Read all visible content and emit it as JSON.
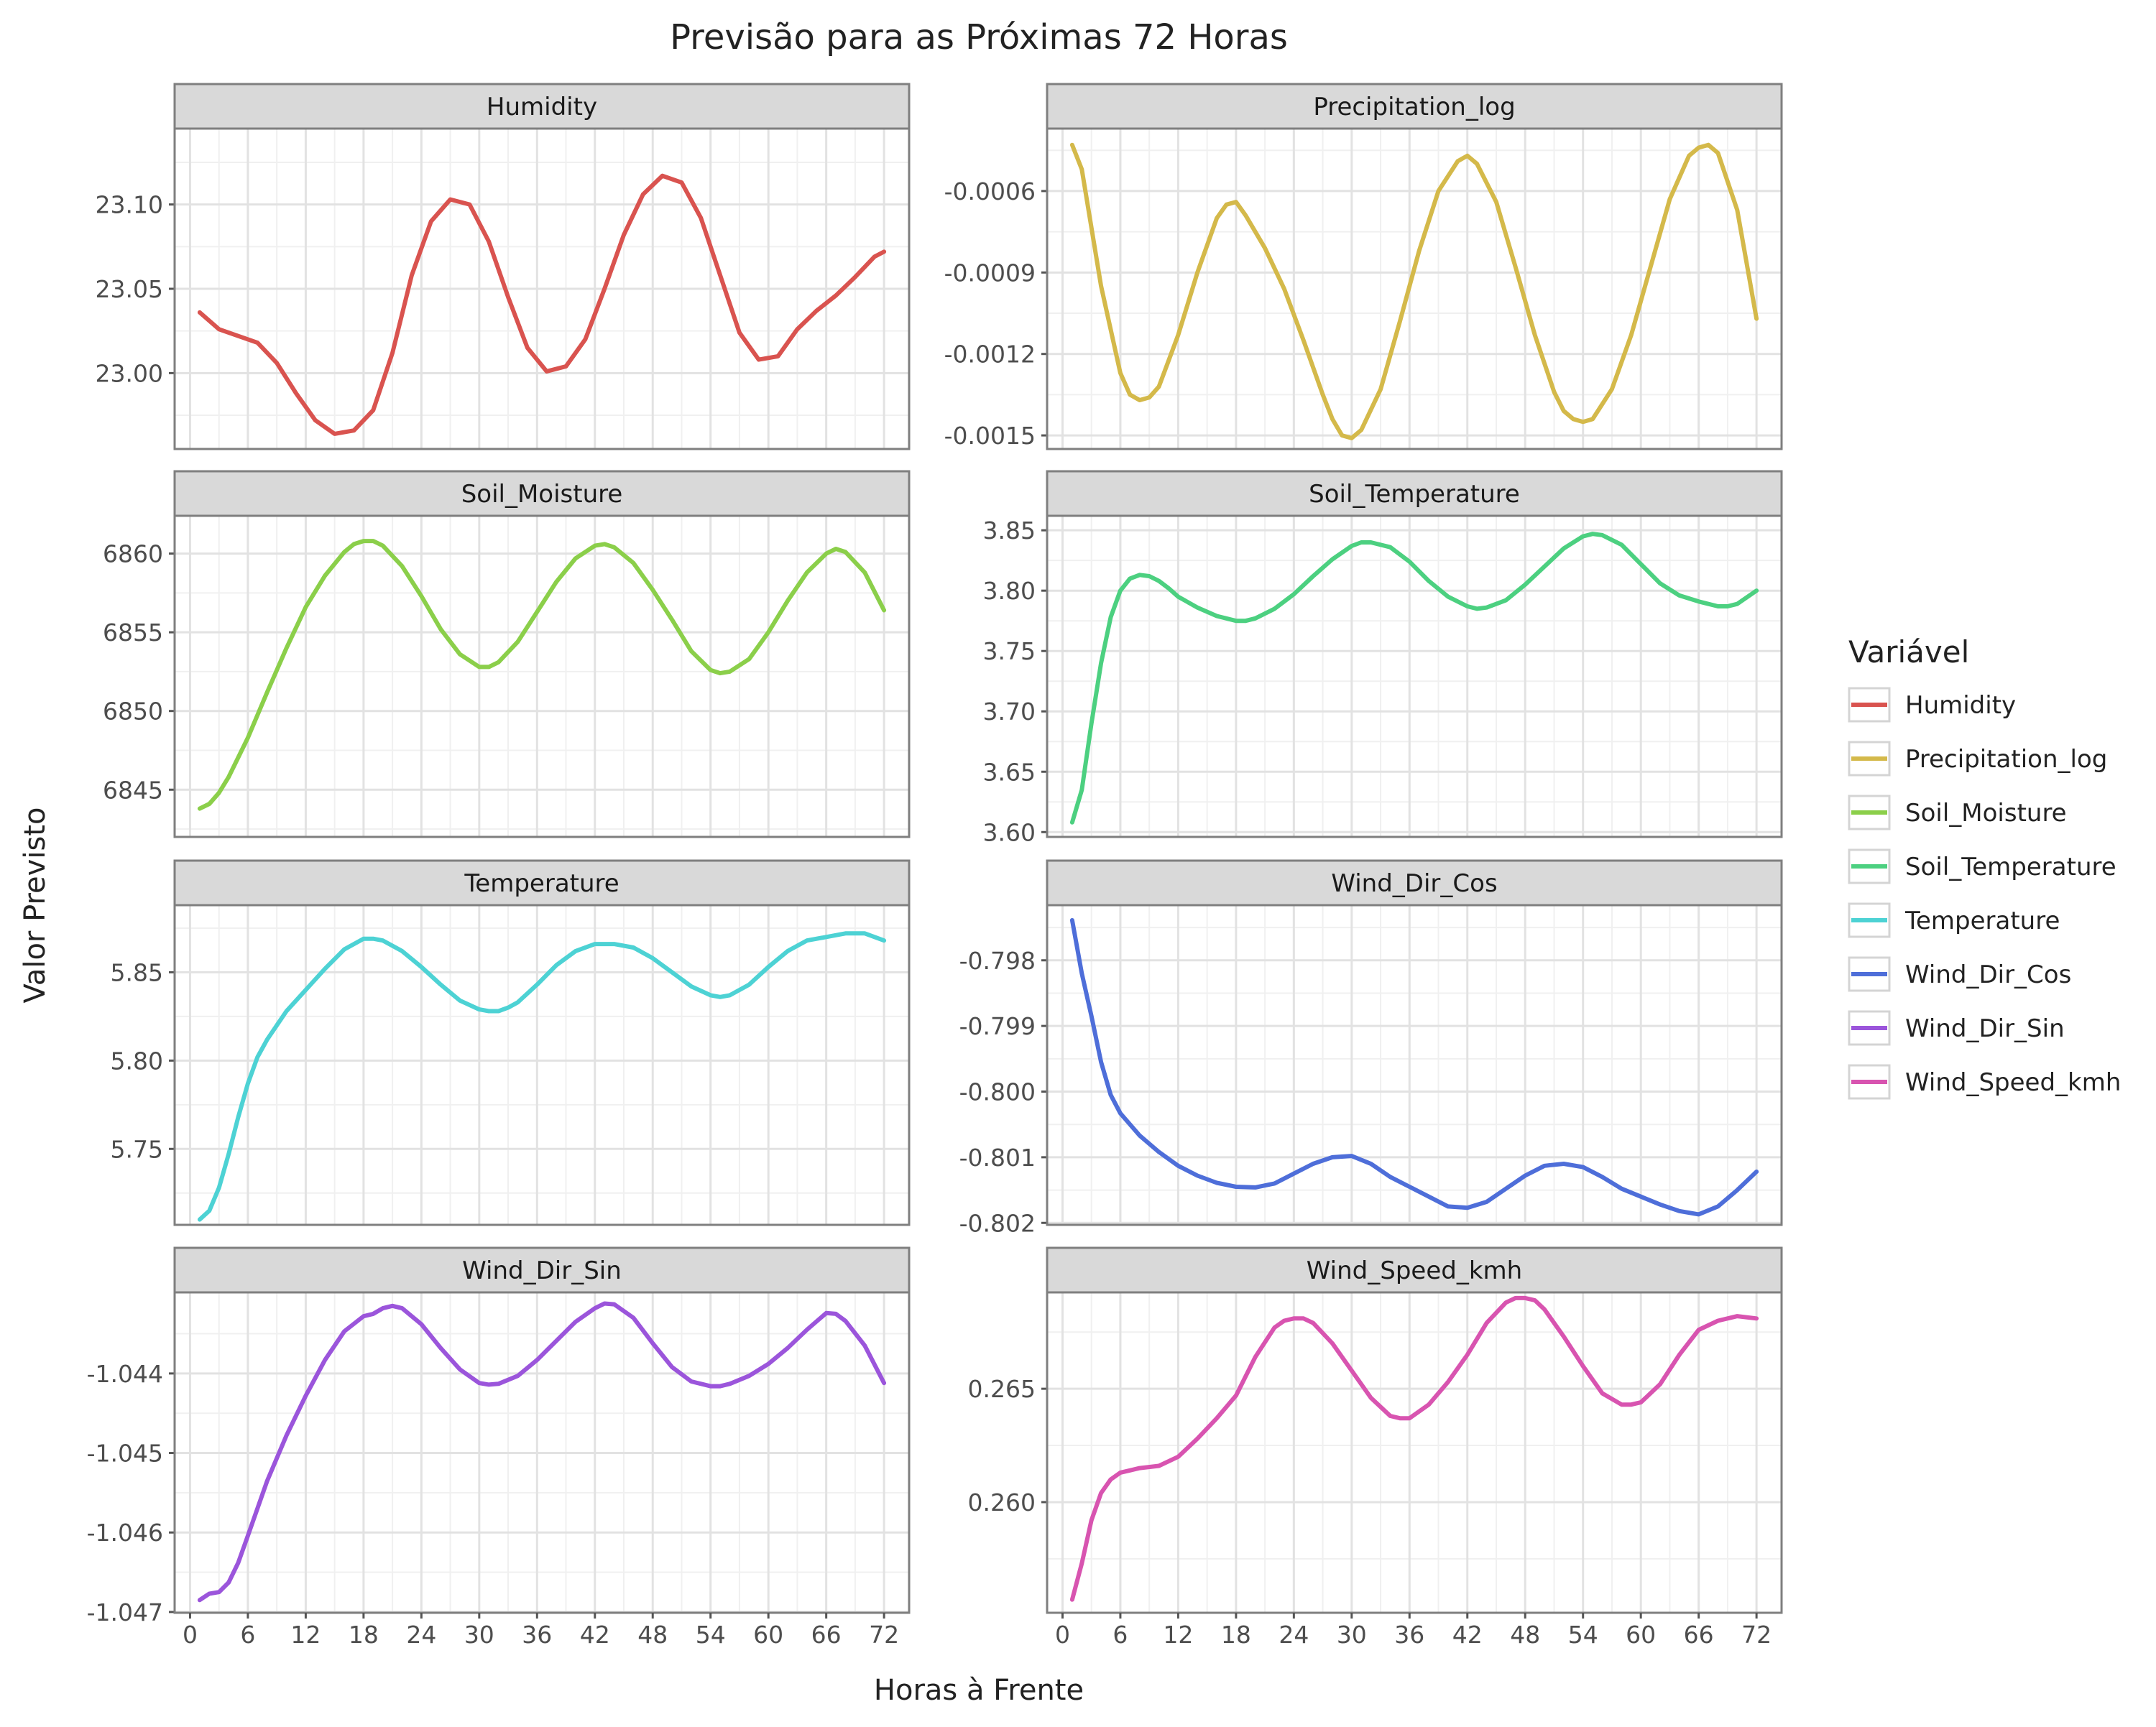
{
  "chart_data": {
    "type": "line",
    "title": "Previsão para as Próximas 72 Horas",
    "xlabel": "Horas à Frente",
    "ylabel": "Valor Previsto",
    "legend": {
      "title": "Variável",
      "position": "right",
      "entries": [
        "Humidity",
        "Precipitation_log",
        "Soil_Moisture",
        "Soil_Temperature",
        "Temperature",
        "Wind_Dir_Cos",
        "Wind_Dir_Sin",
        "Wind_Speed_kmh"
      ]
    },
    "grid": true,
    "x": {
      "ticks": [
        0,
        6,
        12,
        18,
        24,
        30,
        36,
        42,
        48,
        54,
        60,
        66,
        72
      ],
      "tick_labels": [
        "0",
        "6",
        "12",
        "18",
        "24",
        "30",
        "36",
        "42",
        "48",
        "54",
        "60",
        "66",
        "72"
      ],
      "lim": [
        -1.6,
        74.6
      ]
    },
    "facets": [
      {
        "name": "Humidity",
        "color": "#D9534F",
        "ylim": [
          22.955,
          23.145
        ],
        "yticks": [
          23.0,
          23.05,
          23.1
        ],
        "ytick_labels": [
          "23.00",
          "23.05",
          "23.10"
        ],
        "x": [
          1,
          3,
          5,
          7,
          9,
          11,
          13,
          15,
          17,
          19,
          21,
          23,
          25,
          27,
          29,
          31,
          33,
          35,
          37,
          39,
          41,
          43,
          45,
          47,
          49,
          51,
          53,
          55,
          57,
          59,
          61,
          63,
          65,
          67,
          69,
          71,
          72
        ],
        "values": [
          23.036,
          23.026,
          23.022,
          23.018,
          23.006,
          22.988,
          22.972,
          22.964,
          22.966,
          22.978,
          23.012,
          23.058,
          23.09,
          23.103,
          23.1,
          23.078,
          23.045,
          23.015,
          23.001,
          23.004,
          23.02,
          23.05,
          23.082,
          23.106,
          23.117,
          23.113,
          23.092,
          23.058,
          23.024,
          23.008,
          23.01,
          23.026,
          23.037,
          23.046,
          23.057,
          23.069,
          23.072
        ]
      },
      {
        "name": "Precipitation_log",
        "color": "#D4B94A",
        "ylim": [
          -0.00155,
          -0.00037
        ],
        "yticks": [
          -0.0015,
          -0.0012,
          -0.0009,
          -0.0006
        ],
        "ytick_labels": [
          "-0.0015",
          "-0.0012",
          "-0.0009",
          "-0.0006"
        ],
        "x": [
          1,
          2,
          4,
          6,
          7,
          8,
          9,
          10,
          12,
          14,
          16,
          17,
          18,
          19,
          21,
          23,
          25,
          27,
          28,
          29,
          30,
          31,
          33,
          35,
          37,
          39,
          41,
          42,
          43,
          45,
          47,
          49,
          51,
          52,
          53,
          54,
          55,
          57,
          59,
          61,
          63,
          65,
          66,
          67,
          68,
          70,
          72
        ],
        "values": [
          -0.00043,
          -0.00052,
          -0.00095,
          -0.00127,
          -0.00135,
          -0.00137,
          -0.00136,
          -0.00132,
          -0.00113,
          -0.0009,
          -0.0007,
          -0.00065,
          -0.00064,
          -0.00069,
          -0.00081,
          -0.00096,
          -0.00115,
          -0.00135,
          -0.00144,
          -0.0015,
          -0.00151,
          -0.00148,
          -0.00133,
          -0.00108,
          -0.00082,
          -0.0006,
          -0.00049,
          -0.00047,
          -0.0005,
          -0.00064,
          -0.00088,
          -0.00113,
          -0.00134,
          -0.00141,
          -0.00144,
          -0.00145,
          -0.00144,
          -0.00133,
          -0.00113,
          -0.00088,
          -0.00063,
          -0.00047,
          -0.00044,
          -0.00043,
          -0.00046,
          -0.00067,
          -0.00107
        ]
      },
      {
        "name": "Soil_Moisture",
        "color": "#8BCF4A",
        "ylim": [
          6842.0,
          6862.4
        ],
        "yticks": [
          6845,
          6850,
          6855,
          6860
        ],
        "ytick_labels": [
          "6845",
          "6850",
          "6855",
          "6860"
        ],
        "x": [
          1,
          2,
          3,
          4,
          6,
          8,
          10,
          12,
          14,
          16,
          17,
          18,
          19,
          20,
          22,
          24,
          26,
          28,
          30,
          31,
          32,
          34,
          36,
          38,
          40,
          42,
          43,
          44,
          46,
          48,
          50,
          52,
          54,
          55,
          56,
          58,
          60,
          62,
          64,
          66,
          67,
          68,
          70,
          72
        ],
        "values": [
          6843.8,
          6844.1,
          6844.8,
          6845.8,
          6848.3,
          6851.2,
          6854.0,
          6856.6,
          6858.6,
          6860.1,
          6860.6,
          6860.8,
          6860.8,
          6860.5,
          6859.2,
          6857.3,
          6855.2,
          6853.6,
          6852.8,
          6852.8,
          6853.1,
          6854.4,
          6856.3,
          6858.2,
          6859.7,
          6860.5,
          6860.6,
          6860.4,
          6859.4,
          6857.7,
          6855.8,
          6853.8,
          6852.6,
          6852.4,
          6852.5,
          6853.3,
          6855.0,
          6857.0,
          6858.8,
          6860.0,
          6860.3,
          6860.1,
          6858.8,
          6856.4
        ]
      },
      {
        "name": "Soil_Temperature",
        "color": "#4CD080",
        "ylim": [
          3.596,
          3.862
        ],
        "yticks": [
          3.6,
          3.65,
          3.7,
          3.75,
          3.8,
          3.85
        ],
        "ytick_labels": [
          "3.60",
          "3.65",
          "3.70",
          "3.75",
          "3.80",
          "3.85"
        ],
        "x": [
          1,
          2,
          3,
          4,
          5,
          6,
          7,
          8,
          9,
          10,
          11,
          12,
          14,
          16,
          18,
          19,
          20,
          22,
          24,
          26,
          28,
          30,
          31,
          32,
          34,
          36,
          38,
          40,
          42,
          43,
          44,
          46,
          48,
          50,
          52,
          54,
          55,
          56,
          58,
          60,
          62,
          64,
          66,
          68,
          69,
          70,
          72
        ],
        "values": [
          3.608,
          3.635,
          3.69,
          3.74,
          3.778,
          3.8,
          3.81,
          3.813,
          3.812,
          3.808,
          3.802,
          3.795,
          3.786,
          3.779,
          3.775,
          3.775,
          3.777,
          3.785,
          3.797,
          3.812,
          3.826,
          3.837,
          3.84,
          3.84,
          3.836,
          3.824,
          3.808,
          3.795,
          3.787,
          3.785,
          3.786,
          3.792,
          3.805,
          3.82,
          3.835,
          3.845,
          3.847,
          3.846,
          3.838,
          3.822,
          3.806,
          3.796,
          3.791,
          3.787,
          3.787,
          3.789,
          3.8
        ]
      },
      {
        "name": "Temperature",
        "color": "#4DD2D4",
        "ylim": [
          5.707,
          5.888
        ],
        "yticks": [
          5.75,
          5.8,
          5.85
        ],
        "ytick_labels": [
          "5.75",
          "5.80",
          "5.85"
        ],
        "x": [
          1,
          2,
          3,
          4,
          5,
          6,
          7,
          8,
          10,
          12,
          14,
          16,
          17,
          18,
          19,
          20,
          22,
          24,
          26,
          28,
          30,
          31,
          32,
          33,
          34,
          36,
          38,
          40,
          42,
          43,
          44,
          46,
          48,
          50,
          52,
          54,
          55,
          56,
          58,
          60,
          62,
          64,
          66,
          68,
          70,
          72
        ],
        "values": [
          5.71,
          5.715,
          5.728,
          5.747,
          5.768,
          5.787,
          5.802,
          5.812,
          5.828,
          5.84,
          5.852,
          5.863,
          5.866,
          5.869,
          5.869,
          5.868,
          5.862,
          5.853,
          5.843,
          5.834,
          5.829,
          5.828,
          5.828,
          5.83,
          5.833,
          5.843,
          5.854,
          5.862,
          5.866,
          5.866,
          5.866,
          5.864,
          5.858,
          5.85,
          5.842,
          5.837,
          5.836,
          5.837,
          5.843,
          5.853,
          5.862,
          5.868,
          5.87,
          5.872,
          5.872,
          5.868
        ]
      },
      {
        "name": "Wind_Dir_Cos",
        "color": "#4E6ED9",
        "ylim": [
          -0.80203,
          -0.79716
        ],
        "yticks": [
          -0.802,
          -0.801,
          -0.8,
          -0.799,
          -0.798
        ],
        "ytick_labels": [
          "-0.802",
          "-0.801",
          "-0.800",
          "-0.799",
          "-0.798"
        ],
        "x": [
          1,
          2,
          3,
          4,
          5,
          6,
          8,
          10,
          12,
          14,
          16,
          18,
          20,
          22,
          24,
          26,
          28,
          30,
          32,
          34,
          36,
          38,
          40,
          42,
          44,
          46,
          48,
          50,
          52,
          54,
          56,
          58,
          60,
          62,
          64,
          66,
          68,
          70,
          72
        ],
        "values": [
          -0.79739,
          -0.7982,
          -0.79885,
          -0.79955,
          -0.80005,
          -0.80033,
          -0.80067,
          -0.80092,
          -0.80113,
          -0.80128,
          -0.80139,
          -0.80145,
          -0.80146,
          -0.8014,
          -0.80125,
          -0.8011,
          -0.801,
          -0.80098,
          -0.8011,
          -0.8013,
          -0.80145,
          -0.8016,
          -0.80175,
          -0.80177,
          -0.80168,
          -0.80148,
          -0.80128,
          -0.80113,
          -0.8011,
          -0.80115,
          -0.8013,
          -0.80148,
          -0.8016,
          -0.80172,
          -0.80182,
          -0.80187,
          -0.80175,
          -0.8015,
          -0.80122
        ]
      },
      {
        "name": "Wind_Dir_Sin",
        "color": "#9B55DB",
        "ylim": [
          -1.04701,
          -1.04298
        ],
        "yticks": [
          -1.047,
          -1.046,
          -1.045,
          -1.044
        ],
        "ytick_labels": [
          "-1.047",
          "-1.046",
          "-1.045",
          "-1.044"
        ],
        "x": [
          1,
          2,
          3,
          4,
          5,
          6,
          8,
          10,
          12,
          14,
          16,
          18,
          19,
          20,
          21,
          22,
          24,
          26,
          28,
          30,
          31,
          32,
          34,
          36,
          38,
          40,
          42,
          43,
          44,
          46,
          48,
          50,
          52,
          54,
          55,
          56,
          58,
          60,
          62,
          64,
          66,
          67,
          68,
          70,
          72
        ],
        "values": [
          -1.04685,
          -1.04677,
          -1.04675,
          -1.04663,
          -1.04638,
          -1.04604,
          -1.04535,
          -1.04478,
          -1.04428,
          -1.04383,
          -1.04347,
          -1.04328,
          -1.04325,
          -1.04318,
          -1.04315,
          -1.04318,
          -1.04338,
          -1.04368,
          -1.04395,
          -1.04412,
          -1.04414,
          -1.04413,
          -1.04403,
          -1.04383,
          -1.04359,
          -1.04335,
          -1.04318,
          -1.04312,
          -1.04313,
          -1.0433,
          -1.04362,
          -1.04392,
          -1.0441,
          -1.04416,
          -1.04416,
          -1.04413,
          -1.04403,
          -1.04388,
          -1.04368,
          -1.04345,
          -1.04324,
          -1.04325,
          -1.04334,
          -1.04365,
          -1.04412
        ]
      },
      {
        "name": "Wind_Speed_kmh",
        "color": "#D854B0",
        "ylim": [
          0.25512,
          0.26925
        ],
        "yticks": [
          0.26,
          0.265
        ],
        "ytick_labels": [
          "0.260",
          "0.265"
        ],
        "x": [
          1,
          2,
          3,
          4,
          5,
          6,
          7,
          8,
          10,
          12,
          14,
          16,
          18,
          20,
          22,
          23,
          24,
          25,
          26,
          28,
          30,
          32,
          34,
          35,
          36,
          38,
          40,
          42,
          44,
          46,
          47,
          48,
          49,
          50,
          52,
          54,
          56,
          58,
          59,
          60,
          62,
          64,
          66,
          68,
          70,
          72
        ],
        "values": [
          0.2557,
          0.2573,
          0.2592,
          0.2604,
          0.261,
          0.2613,
          0.2614,
          0.2615,
          0.2616,
          0.262,
          0.2628,
          0.2637,
          0.2647,
          0.2664,
          0.2677,
          0.268,
          0.2681,
          0.2681,
          0.2679,
          0.267,
          0.2658,
          0.2646,
          0.2638,
          0.2637,
          0.2637,
          0.2643,
          0.2653,
          0.2665,
          0.2679,
          0.2688,
          0.269,
          0.269,
          0.2689,
          0.2685,
          0.2673,
          0.266,
          0.2648,
          0.2643,
          0.2643,
          0.2644,
          0.2652,
          0.2665,
          0.2676,
          0.268,
          0.2682,
          0.2681
        ]
      }
    ]
  }
}
